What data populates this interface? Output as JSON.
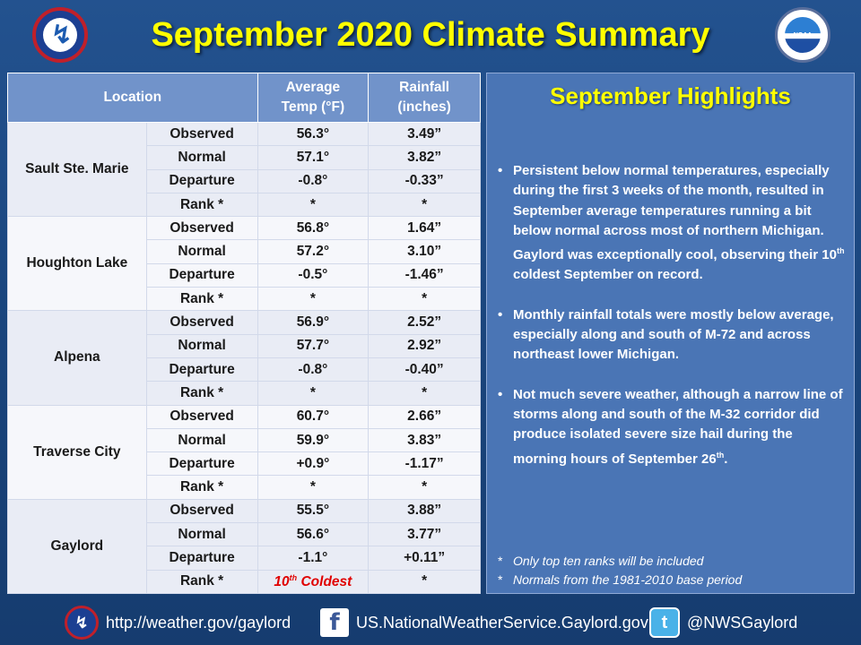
{
  "title": "September 2020 Climate Summary",
  "table": {
    "headers": {
      "location": "Location",
      "temp_line1": "Average",
      "temp_line2": "Temp (°F)",
      "rain_line1": "Rainfall",
      "rain_line2": "(inches)"
    },
    "stations": [
      {
        "name": "Sault Ste. Marie",
        "rows": [
          {
            "label": "Observed",
            "temp": "56.3°",
            "rain": "3.49”"
          },
          {
            "label": "Normal",
            "temp": "57.1°",
            "rain": "3.82”"
          },
          {
            "label": "Departure",
            "temp": "-0.8°",
            "rain": "-0.33”"
          },
          {
            "label": "Rank *",
            "temp": "*",
            "rain": "*"
          }
        ]
      },
      {
        "name": "Houghton Lake",
        "rows": [
          {
            "label": "Observed",
            "temp": "56.8°",
            "rain": "1.64”"
          },
          {
            "label": "Normal",
            "temp": "57.2°",
            "rain": "3.10”"
          },
          {
            "label": "Departure",
            "temp": "-0.5°",
            "rain": "-1.46”"
          },
          {
            "label": "Rank *",
            "temp": "*",
            "rain": "*"
          }
        ]
      },
      {
        "name": "Alpena",
        "rows": [
          {
            "label": "Observed",
            "temp": "56.9°",
            "rain": "2.52”"
          },
          {
            "label": "Normal",
            "temp": "57.7°",
            "rain": "2.92”"
          },
          {
            "label": "Departure",
            "temp": "-0.8°",
            "rain": "-0.40”"
          },
          {
            "label": "Rank *",
            "temp": "*",
            "rain": "*"
          }
        ]
      },
      {
        "name": "Traverse City",
        "rows": [
          {
            "label": "Observed",
            "temp": "60.7°",
            "rain": "2.66”"
          },
          {
            "label": "Normal",
            "temp": "59.9°",
            "rain": "3.83”"
          },
          {
            "label": "Departure",
            "temp": "+0.9°",
            "rain": "-1.17”"
          },
          {
            "label": "Rank *",
            "temp": "*",
            "rain": "*"
          }
        ]
      },
      {
        "name": "Gaylord",
        "rows": [
          {
            "label": "Observed",
            "temp": "55.5°",
            "rain": "3.88”"
          },
          {
            "label": "Normal",
            "temp": "56.6°",
            "rain": "3.77”"
          },
          {
            "label": "Departure",
            "temp": "-1.1°",
            "rain": "+0.11”"
          },
          {
            "label": "Rank *",
            "temp_base": "10",
            "temp_sup": "th",
            "temp_rest": " Coldest",
            "rain": "*"
          }
        ]
      }
    ]
  },
  "highlights": {
    "title": "September Highlights",
    "bullet1_text": "Persistent below normal temperatures, especially during the first 3 weeks of the month, resulted in September average temperatures running a bit below normal across most of northern Michigan.  Gaylord was exceptionally cool, observing their 10",
    "bullet1_sup": "th",
    "bullet1_end": " coldest September on record.",
    "bullet2_text": "Monthly rainfall totals were mostly below average, especially along and south of M-72 and across northeast lower Michigan.",
    "bullet3_text": "Not much severe weather, although a narrow line of storms along and south of the M-32 corridor did produce isolated severe size hail during the morning hours of September 26",
    "bullet3_sup": "th",
    "bullet3_end": ".",
    "note1": "Only top ten ranks will be included",
    "note2": "Normals from the 1981-2010 base period"
  },
  "footer": {
    "website": "http://weather.gov/gaylord",
    "facebook": "US.NationalWeatherService.Gaylord.gov",
    "twitter": "@NWSGaylord"
  },
  "logos": {
    "nws_text": "NATIONAL WEATHER SERVICE",
    "noaa_text": "NOAA"
  },
  "colors": {
    "title": "#ffff00",
    "header_bg": "#7193ca",
    "panel_bg": "#4a75b5",
    "rank_highlight": "#e00000"
  },
  "icons": [
    "nws-logo-icon",
    "noaa-logo-icon",
    "facebook-icon",
    "twitter-icon"
  ]
}
